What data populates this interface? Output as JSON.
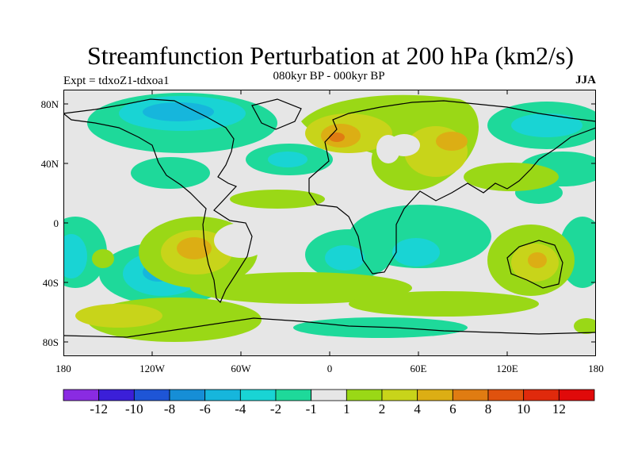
{
  "title": "Streamfunction Perturbation at 200 hPa (km2/s)",
  "subtitle": "080kyr BP - 000kyr BP",
  "left_label": "Expt = tdxoZ1-tdxoa1",
  "right_label": "JJA",
  "y_ticks": [
    "80N",
    "40N",
    "0",
    "40S",
    "80S"
  ],
  "x_ticks": [
    "180",
    "120W",
    "60W",
    "0",
    "60E",
    "120E",
    "180"
  ],
  "colorbar": {
    "labels": [
      "-12",
      "-10",
      "-8",
      "-6",
      "-4",
      "-2",
      "-1",
      "1",
      "2",
      "4",
      "6",
      "8",
      "10",
      "12"
    ],
    "colors": [
      "#8a2be2",
      "#3b1fd8",
      "#1e55d6",
      "#168ed6",
      "#16b6dc",
      "#19d4d4",
      "#1ed99a",
      "#e6e6e6",
      "#9ad816",
      "#c8d41a",
      "#dcae14",
      "#e07c12",
      "#e0520e",
      "#e02a0c",
      "#e00a0a"
    ]
  },
  "colors": {
    "neutral": "#e6e6e6"
  }
}
